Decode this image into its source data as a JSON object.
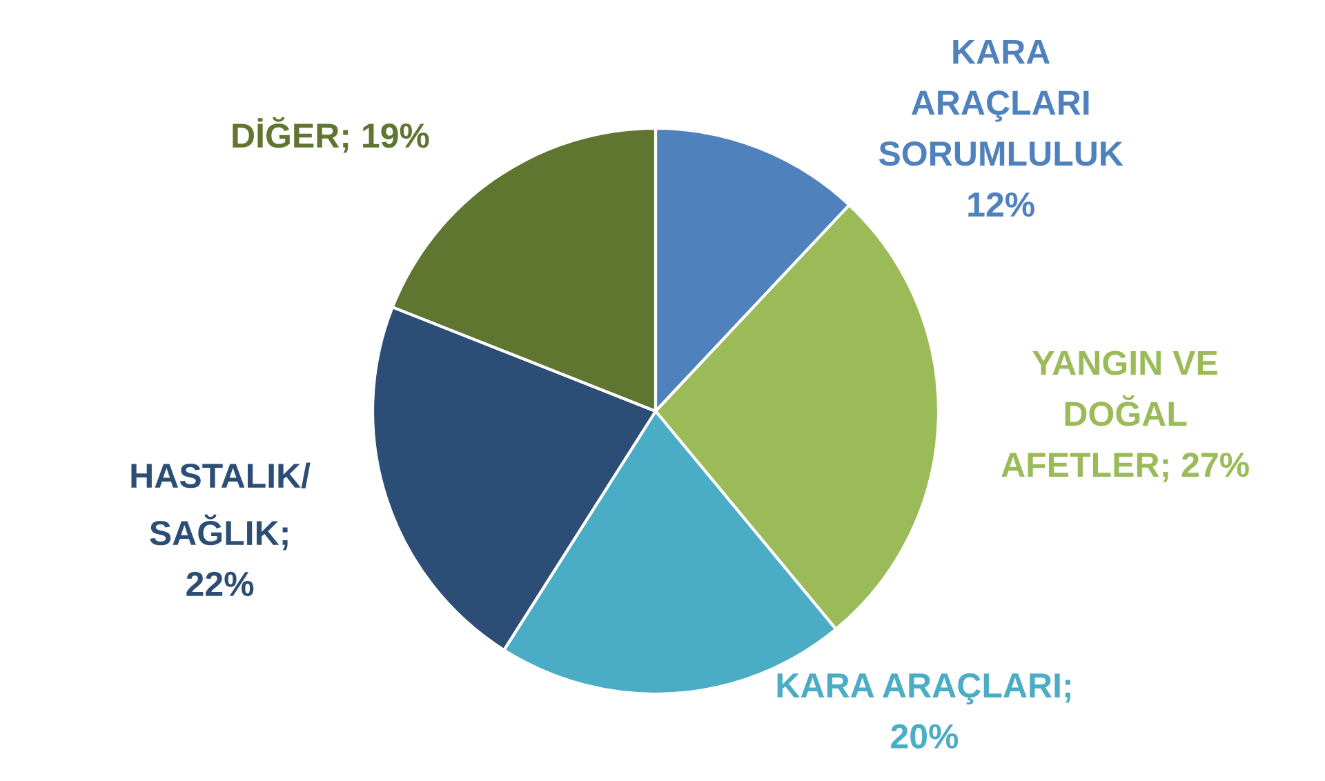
{
  "chart_data": {
    "type": "pie",
    "categories": [
      "KARA\nARAÇLARI\nSORUMLULUK",
      "YANGIN VE\nDOĞAL\nAFETLER",
      "KARA ARAÇLARI",
      "HASTALIK/\nSAĞLIK",
      "DİĞER"
    ],
    "values": [
      12,
      27,
      20,
      22,
      19
    ],
    "colors": [
      "#4f81bd",
      "#9bbb59",
      "#4bacc6",
      "#2c4d75",
      "#5f7530"
    ],
    "value_labels": [
      "12%",
      "; 27%",
      "; 20%",
      "; 22%",
      "; 19%"
    ],
    "legend": false
  }
}
